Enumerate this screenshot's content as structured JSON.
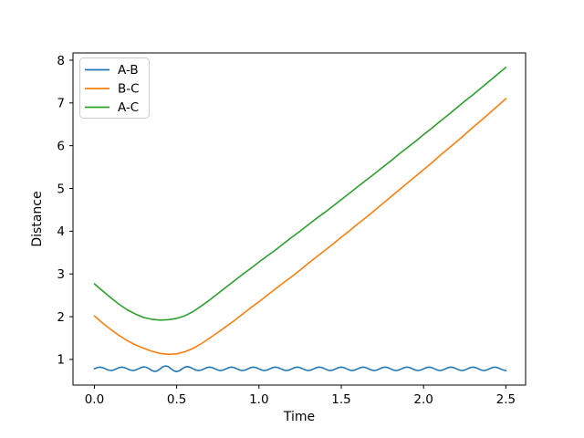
{
  "chart_data": {
    "type": "line",
    "title": "",
    "xlabel": "Time",
    "ylabel": "Distance",
    "xlim": [
      -0.13,
      2.62
    ],
    "ylim": [
      0.4,
      8.17
    ],
    "grid": false,
    "legend_position": "upper-left",
    "xticks": [
      {
        "v": 0.0,
        "label": "0.0"
      },
      {
        "v": 0.5,
        "label": "0.5"
      },
      {
        "v": 1.0,
        "label": "1.0"
      },
      {
        "v": 1.5,
        "label": "1.5"
      },
      {
        "v": 2.0,
        "label": "2.0"
      },
      {
        "v": 2.5,
        "label": "2.5"
      }
    ],
    "yticks": [
      {
        "v": 1,
        "label": "1"
      },
      {
        "v": 2,
        "label": "2"
      },
      {
        "v": 3,
        "label": "3"
      },
      {
        "v": 4,
        "label": "4"
      },
      {
        "v": 5,
        "label": "5"
      },
      {
        "v": 6,
        "label": "6"
      },
      {
        "v": 7,
        "label": "7"
      },
      {
        "v": 8,
        "label": "8"
      }
    ],
    "series": [
      {
        "name": "A-B",
        "color": "#1f77b4",
        "x_start": 0,
        "x_step": 0.0166667,
        "y": [
          0.78,
          0.808,
          0.82,
          0.808,
          0.78,
          0.752,
          0.74,
          0.752,
          0.78,
          0.808,
          0.82,
          0.808,
          0.78,
          0.752,
          0.74,
          0.752,
          0.78,
          0.81,
          0.826,
          0.815,
          0.78,
          0.74,
          0.719,
          0.735,
          0.78,
          0.828,
          0.849,
          0.829,
          0.78,
          0.732,
          0.714,
          0.735,
          0.78,
          0.82,
          0.833,
          0.815,
          0.78,
          0.75,
          0.739,
          0.752,
          0.78,
          0.808,
          0.82,
          0.808,
          0.78,
          0.752,
          0.74,
          0.752,
          0.78,
          0.808,
          0.82,
          0.808,
          0.78,
          0.752,
          0.74,
          0.752,
          0.78,
          0.808,
          0.82,
          0.808,
          0.78,
          0.752,
          0.74,
          0.752,
          0.78,
          0.808,
          0.82,
          0.808,
          0.78,
          0.752,
          0.74,
          0.752,
          0.78,
          0.808,
          0.82,
          0.808,
          0.78,
          0.752,
          0.74,
          0.752,
          0.78,
          0.808,
          0.82,
          0.808,
          0.78,
          0.752,
          0.74,
          0.752,
          0.78,
          0.808,
          0.82,
          0.808,
          0.78,
          0.752,
          0.74,
          0.752,
          0.78,
          0.808,
          0.82,
          0.808,
          0.78,
          0.752,
          0.74,
          0.752,
          0.78,
          0.808,
          0.82,
          0.808,
          0.78,
          0.752,
          0.74,
          0.752,
          0.78,
          0.808,
          0.82,
          0.808,
          0.78,
          0.752,
          0.74,
          0.752,
          0.78,
          0.808,
          0.82,
          0.808,
          0.78,
          0.752,
          0.74,
          0.752,
          0.78,
          0.808,
          0.82,
          0.808,
          0.78,
          0.752,
          0.74,
          0.752,
          0.78,
          0.808,
          0.82,
          0.808,
          0.78,
          0.752,
          0.74,
          0.752,
          0.78,
          0.808,
          0.82,
          0.808,
          0.78,
          0.752,
          0.74
        ]
      },
      {
        "name": "B-C",
        "color": "#ff7f0e",
        "x_start": 0,
        "x_step": 0.05,
        "y": [
          2.02,
          1.85,
          1.7,
          1.56,
          1.44,
          1.34,
          1.26,
          1.19,
          1.14,
          1.12,
          1.13,
          1.18,
          1.26,
          1.37,
          1.5,
          1.63,
          1.77,
          1.91,
          2.06,
          2.21,
          2.35,
          2.5,
          2.65,
          2.8,
          2.94,
          3.09,
          3.25,
          3.4,
          3.55,
          3.7,
          3.86,
          4.01,
          4.17,
          4.32,
          4.48,
          4.64,
          4.8,
          4.96,
          5.12,
          5.28,
          5.44,
          5.6,
          5.77,
          5.93,
          6.09,
          6.26,
          6.43,
          6.59,
          6.76,
          6.93,
          7.1
        ]
      },
      {
        "name": "A-C",
        "color": "#2ca02c",
        "x_start": 0,
        "x_step": 0.05,
        "y": [
          2.77,
          2.6,
          2.44,
          2.29,
          2.16,
          2.06,
          1.98,
          1.94,
          1.92,
          1.93,
          1.96,
          2.02,
          2.12,
          2.25,
          2.39,
          2.54,
          2.69,
          2.84,
          2.99,
          3.13,
          3.28,
          3.42,
          3.56,
          3.71,
          3.86,
          4.0,
          4.15,
          4.3,
          4.44,
          4.59,
          4.74,
          4.89,
          5.04,
          5.19,
          5.34,
          5.49,
          5.64,
          5.8,
          5.95,
          6.1,
          6.26,
          6.41,
          6.57,
          6.72,
          6.88,
          7.04,
          7.19,
          7.35,
          7.51,
          7.67,
          7.83
        ]
      }
    ]
  }
}
